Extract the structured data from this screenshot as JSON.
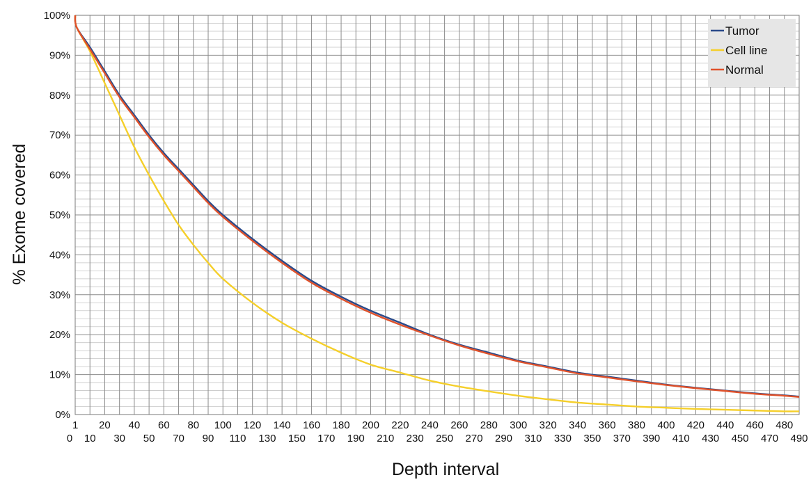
{
  "chart_data": {
    "type": "line",
    "title": "",
    "xlabel": "Depth interval",
    "ylabel": "% Exome covered",
    "xlim": [
      0,
      490
    ],
    "ylim": [
      0,
      100
    ],
    "grid": true,
    "legend_position": "top-right",
    "x_tick_labels_upper": [
      "1",
      "20",
      "40",
      "60",
      "80",
      "100",
      "120",
      "140",
      "160",
      "180",
      "200",
      "220",
      "240",
      "260",
      "280",
      "300",
      "320",
      "340",
      "360",
      "380",
      "400",
      "420",
      "440",
      "460",
      "480"
    ],
    "x_tick_labels_lower": [
      "0",
      "10",
      "30",
      "50",
      "70",
      "90",
      "110",
      "130",
      "150",
      "170",
      "190",
      "210",
      "230",
      "250",
      "270",
      "290",
      "310",
      "330",
      "350",
      "370",
      "390",
      "410",
      "430",
      "450",
      "470",
      "490"
    ],
    "y_tick_labels": [
      "0%",
      "10%",
      "20%",
      "30%",
      "40%",
      "50%",
      "60%",
      "70%",
      "80%",
      "90%",
      "100%"
    ],
    "x": [
      0,
      1,
      10,
      20,
      30,
      40,
      50,
      60,
      70,
      80,
      90,
      100,
      120,
      140,
      160,
      180,
      200,
      220,
      240,
      260,
      280,
      300,
      320,
      340,
      360,
      380,
      400,
      420,
      440,
      460,
      480,
      490
    ],
    "series": [
      {
        "name": "Tumor",
        "color": "#2a4a8a",
        "values": [
          100,
          97,
          92,
          86,
          80,
          75,
          70,
          65.5,
          61.5,
          57.5,
          53.5,
          50,
          44,
          38.5,
          33.5,
          29.5,
          26,
          23,
          20,
          17.5,
          15.5,
          13.5,
          12,
          10.5,
          9.5,
          8.5,
          7.5,
          6.7,
          6,
          5.3,
          4.8,
          4.5
        ]
      },
      {
        "name": "Cell line",
        "color": "#f5cf2a",
        "values": [
          100,
          97,
          91,
          83,
          75,
          67,
          60,
          53.5,
          47.5,
          42.5,
          38,
          34,
          28,
          23,
          19,
          15.5,
          12.5,
          10.5,
          8.5,
          7,
          5.8,
          4.7,
          3.8,
          3,
          2.5,
          2,
          1.7,
          1.4,
          1.2,
          1,
          0.8,
          0.8
        ]
      },
      {
        "name": "Normal",
        "color": "#e0522b",
        "values": [
          100,
          97,
          91.5,
          85.5,
          79.5,
          74.5,
          69.5,
          65,
          61,
          57,
          53,
          49.5,
          43.5,
          38,
          33,
          29,
          25.5,
          22.5,
          19.8,
          17.3,
          15.2,
          13.3,
          11.8,
          10.3,
          9.3,
          8.3,
          7.4,
          6.6,
          5.9,
          5.2,
          4.7,
          4.4
        ]
      }
    ]
  }
}
